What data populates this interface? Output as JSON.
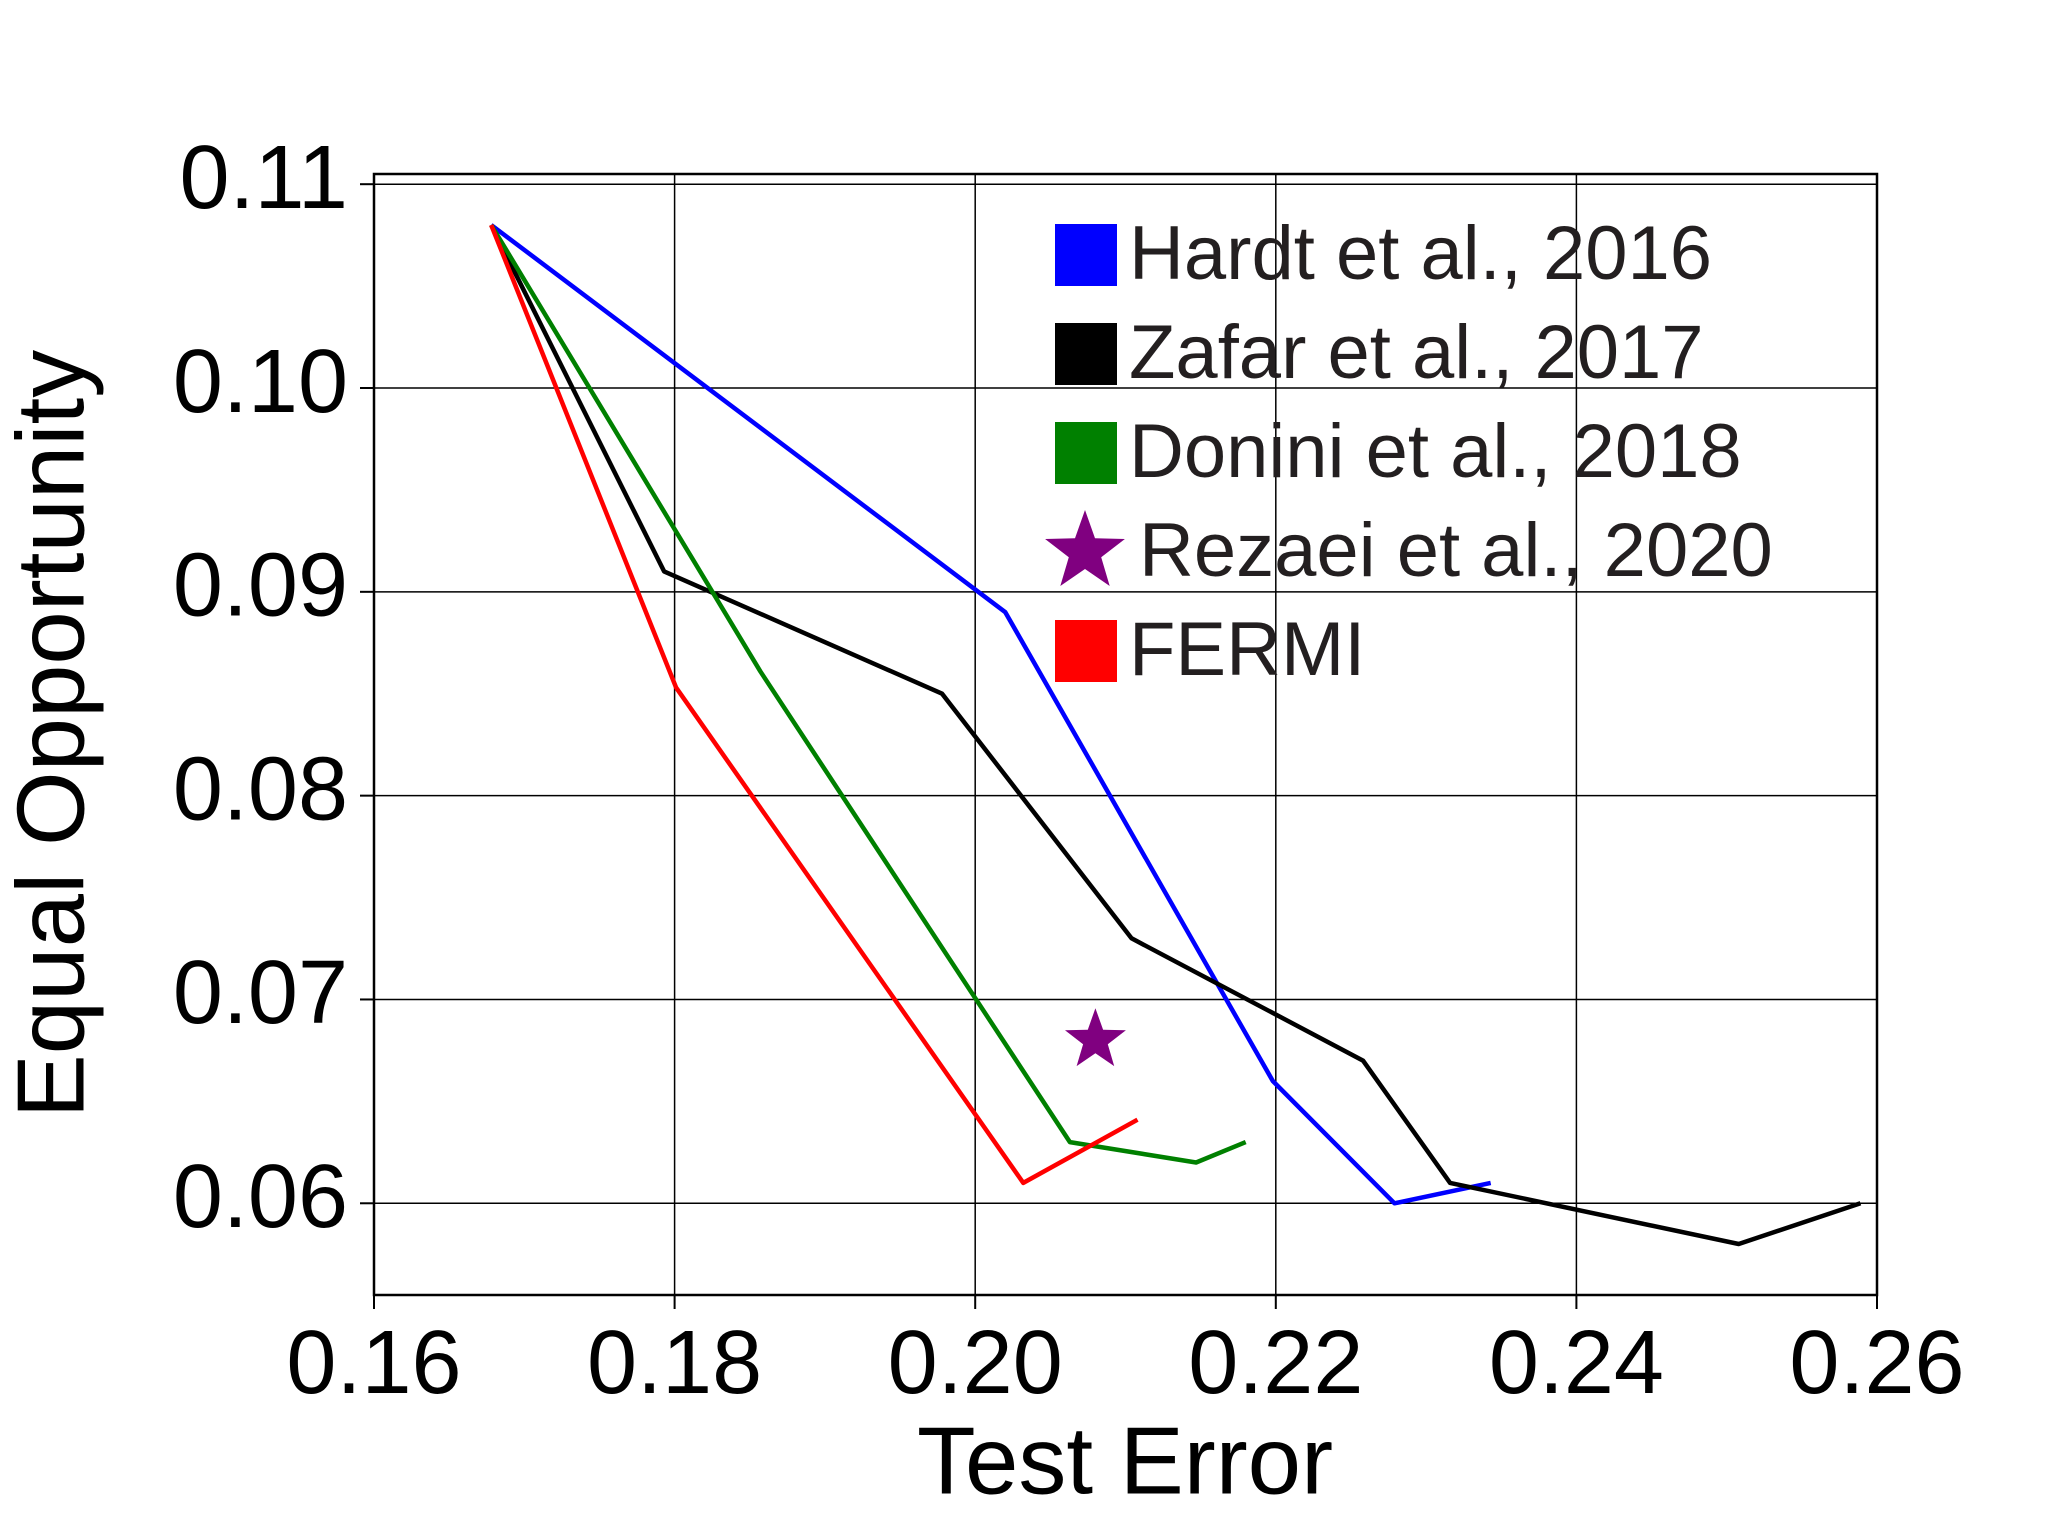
{
  "chart_data": {
    "type": "line",
    "x_label": "Test Error",
    "y_label": "Equal Opportunity",
    "xlim": [
      0.16,
      0.26
    ],
    "ylim": [
      0.0555,
      0.1105
    ],
    "xticks": [
      0.16,
      0.18,
      {
        "value": 0.2,
        "label": "0.20"
      },
      0.22,
      0.24,
      0.26
    ],
    "yticks": [
      0.06,
      0.07,
      0.08,
      0.09,
      {
        "value": 0.1,
        "label": "0.10"
      },
      0.11
    ],
    "grid": true,
    "legend": "upper right",
    "series": [
      {
        "name": "Hardt et al., 2016",
        "color": "#0000ff",
        "x": [
          0.1678,
          0.202,
          0.2198,
          0.2279,
          0.2343
        ],
        "values": [
          0.108,
          0.089,
          0.066,
          0.06,
          0.061
        ]
      },
      {
        "name": "Zafar et al., 2017",
        "color": "#000000",
        "x": [
          0.1678,
          0.1793,
          0.1978,
          0.2104,
          0.2258,
          0.2316,
          0.2508,
          0.2589
        ],
        "values": [
          0.108,
          0.091,
          0.085,
          0.073,
          0.067,
          0.061,
          0.058,
          0.06
        ]
      },
      {
        "name": "Donini et al., 2018",
        "color": "#008000",
        "x": [
          0.1678,
          0.1857,
          0.2063,
          0.2147,
          0.218
        ],
        "values": [
          0.108,
          0.0861,
          0.063,
          0.062,
          0.063
        ]
      },
      {
        "name": "Rezaei et al., 2020",
        "color": "#800080",
        "marker": "star",
        "x": [
          0.208
        ],
        "values": [
          0.068
        ]
      },
      {
        "name": "FERMI",
        "color": "#ff0000",
        "x": [
          0.1678,
          0.1801,
          0.2032,
          0.2108
        ],
        "values": [
          0.108,
          0.0853,
          0.061,
          0.0641
        ]
      }
    ]
  }
}
